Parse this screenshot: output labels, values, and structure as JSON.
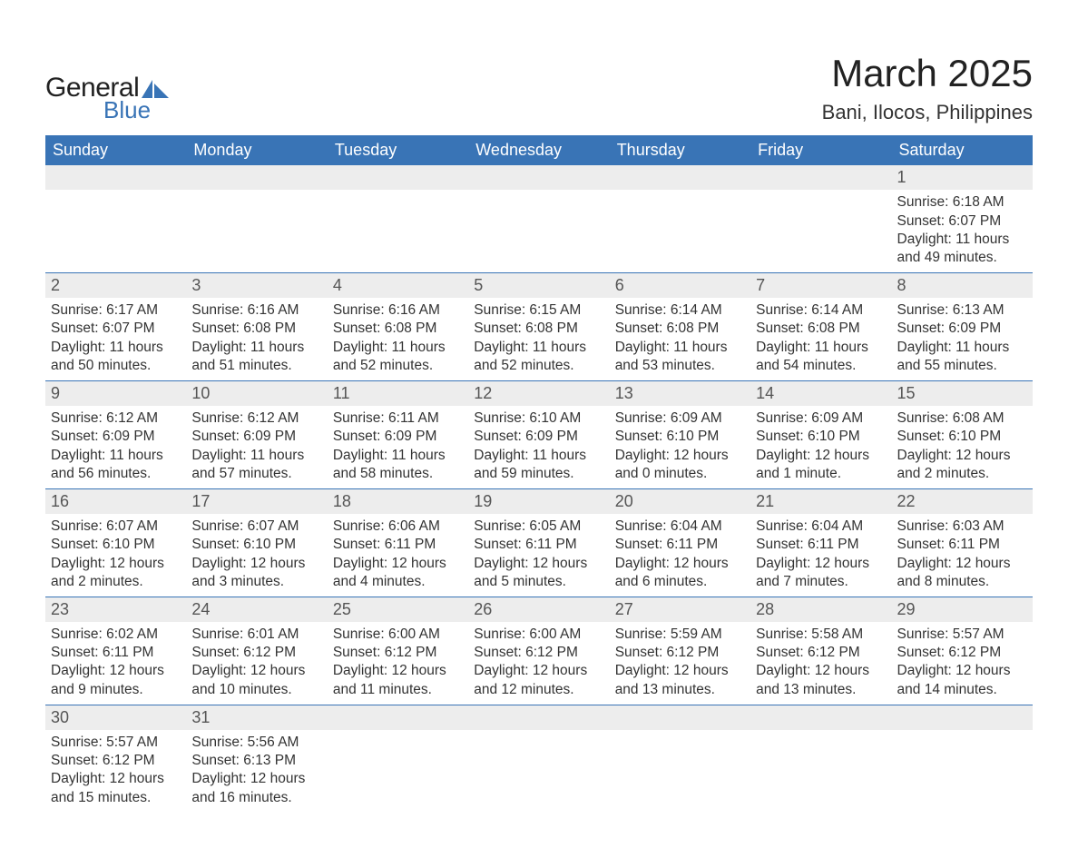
{
  "logo": {
    "word1": "General",
    "word2": "Blue",
    "sail_color": "#3974b6"
  },
  "title": "March 2025",
  "location": "Bani, Ilocos, Philippines",
  "day_headers": [
    "Sunday",
    "Monday",
    "Tuesday",
    "Wednesday",
    "Thursday",
    "Friday",
    "Saturday"
  ],
  "colors": {
    "header_bg": "#3974b6",
    "header_text": "#ffffff",
    "daynum_bg": "#ededed",
    "row_divider": "#3974b6",
    "body_text": "#333333",
    "background": "#ffffff"
  },
  "typography": {
    "title_fontsize": 42,
    "location_fontsize": 22,
    "header_fontsize": 18,
    "cell_fontsize": 15.5
  },
  "layout": {
    "columns": 7,
    "leading_blanks": 6,
    "total_days": 31
  },
  "days": [
    {
      "n": 1,
      "sunrise": "6:18 AM",
      "sunset": "6:07 PM",
      "daylight": "11 hours and 49 minutes."
    },
    {
      "n": 2,
      "sunrise": "6:17 AM",
      "sunset": "6:07 PM",
      "daylight": "11 hours and 50 minutes."
    },
    {
      "n": 3,
      "sunrise": "6:16 AM",
      "sunset": "6:08 PM",
      "daylight": "11 hours and 51 minutes."
    },
    {
      "n": 4,
      "sunrise": "6:16 AM",
      "sunset": "6:08 PM",
      "daylight": "11 hours and 52 minutes."
    },
    {
      "n": 5,
      "sunrise": "6:15 AM",
      "sunset": "6:08 PM",
      "daylight": "11 hours and 52 minutes."
    },
    {
      "n": 6,
      "sunrise": "6:14 AM",
      "sunset": "6:08 PM",
      "daylight": "11 hours and 53 minutes."
    },
    {
      "n": 7,
      "sunrise": "6:14 AM",
      "sunset": "6:08 PM",
      "daylight": "11 hours and 54 minutes."
    },
    {
      "n": 8,
      "sunrise": "6:13 AM",
      "sunset": "6:09 PM",
      "daylight": "11 hours and 55 minutes."
    },
    {
      "n": 9,
      "sunrise": "6:12 AM",
      "sunset": "6:09 PM",
      "daylight": "11 hours and 56 minutes."
    },
    {
      "n": 10,
      "sunrise": "6:12 AM",
      "sunset": "6:09 PM",
      "daylight": "11 hours and 57 minutes."
    },
    {
      "n": 11,
      "sunrise": "6:11 AM",
      "sunset": "6:09 PM",
      "daylight": "11 hours and 58 minutes."
    },
    {
      "n": 12,
      "sunrise": "6:10 AM",
      "sunset": "6:09 PM",
      "daylight": "11 hours and 59 minutes."
    },
    {
      "n": 13,
      "sunrise": "6:09 AM",
      "sunset": "6:10 PM",
      "daylight": "12 hours and 0 minutes."
    },
    {
      "n": 14,
      "sunrise": "6:09 AM",
      "sunset": "6:10 PM",
      "daylight": "12 hours and 1 minute."
    },
    {
      "n": 15,
      "sunrise": "6:08 AM",
      "sunset": "6:10 PM",
      "daylight": "12 hours and 2 minutes."
    },
    {
      "n": 16,
      "sunrise": "6:07 AM",
      "sunset": "6:10 PM",
      "daylight": "12 hours and 2 minutes."
    },
    {
      "n": 17,
      "sunrise": "6:07 AM",
      "sunset": "6:10 PM",
      "daylight": "12 hours and 3 minutes."
    },
    {
      "n": 18,
      "sunrise": "6:06 AM",
      "sunset": "6:11 PM",
      "daylight": "12 hours and 4 minutes."
    },
    {
      "n": 19,
      "sunrise": "6:05 AM",
      "sunset": "6:11 PM",
      "daylight": "12 hours and 5 minutes."
    },
    {
      "n": 20,
      "sunrise": "6:04 AM",
      "sunset": "6:11 PM",
      "daylight": "12 hours and 6 minutes."
    },
    {
      "n": 21,
      "sunrise": "6:04 AM",
      "sunset": "6:11 PM",
      "daylight": "12 hours and 7 minutes."
    },
    {
      "n": 22,
      "sunrise": "6:03 AM",
      "sunset": "6:11 PM",
      "daylight": "12 hours and 8 minutes."
    },
    {
      "n": 23,
      "sunrise": "6:02 AM",
      "sunset": "6:11 PM",
      "daylight": "12 hours and 9 minutes."
    },
    {
      "n": 24,
      "sunrise": "6:01 AM",
      "sunset": "6:12 PM",
      "daylight": "12 hours and 10 minutes."
    },
    {
      "n": 25,
      "sunrise": "6:00 AM",
      "sunset": "6:12 PM",
      "daylight": "12 hours and 11 minutes."
    },
    {
      "n": 26,
      "sunrise": "6:00 AM",
      "sunset": "6:12 PM",
      "daylight": "12 hours and 12 minutes."
    },
    {
      "n": 27,
      "sunrise": "5:59 AM",
      "sunset": "6:12 PM",
      "daylight": "12 hours and 13 minutes."
    },
    {
      "n": 28,
      "sunrise": "5:58 AM",
      "sunset": "6:12 PM",
      "daylight": "12 hours and 13 minutes."
    },
    {
      "n": 29,
      "sunrise": "5:57 AM",
      "sunset": "6:12 PM",
      "daylight": "12 hours and 14 minutes."
    },
    {
      "n": 30,
      "sunrise": "5:57 AM",
      "sunset": "6:12 PM",
      "daylight": "12 hours and 15 minutes."
    },
    {
      "n": 31,
      "sunrise": "5:56 AM",
      "sunset": "6:13 PM",
      "daylight": "12 hours and 16 minutes."
    }
  ],
  "labels": {
    "sunrise": "Sunrise:",
    "sunset": "Sunset:",
    "daylight": "Daylight:"
  }
}
